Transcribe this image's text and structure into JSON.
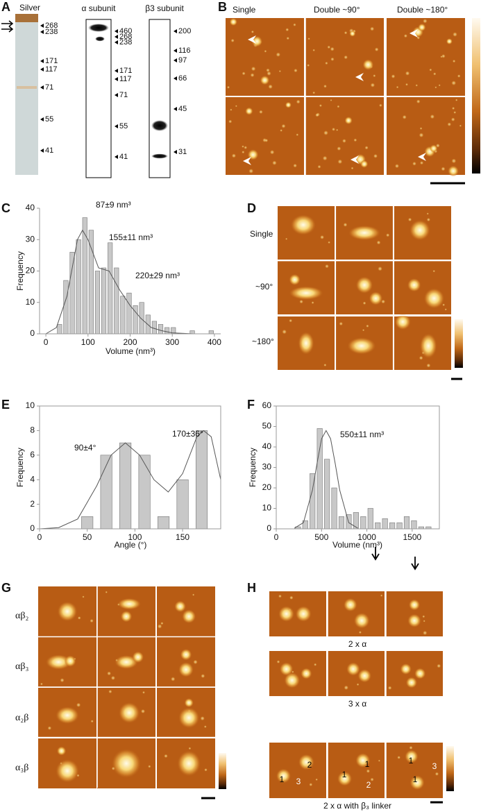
{
  "panel_labels": [
    "A",
    "B",
    "C",
    "D",
    "E",
    "F",
    "G",
    "H"
  ],
  "gel": {
    "silver": {
      "title": "Silver",
      "markers": [
        "268",
        "238",
        "171",
        "117",
        "71",
        "55",
        "41"
      ]
    },
    "alpha": {
      "title": "α subunit",
      "markers": [
        "460",
        "268",
        "238",
        "171",
        "117",
        "71",
        "55",
        "41"
      ]
    },
    "beta3": {
      "title": "β3 subunit",
      "markers": [
        "200",
        "116",
        "97",
        "66",
        "45",
        "31"
      ]
    }
  },
  "afm_b": {
    "columns": [
      "Single",
      "Double ~90°",
      "Double ~180°"
    ]
  },
  "afm_d": {
    "rows": [
      "Single",
      "~90°",
      "~180°"
    ]
  },
  "afm_g": {
    "rows": [
      "αβ₂",
      "αβ₃",
      "α₂β",
      "α₃β"
    ]
  },
  "afm_h": {
    "groups": [
      "2 x α",
      "3 x α",
      "2 x α with β₃ linker"
    ],
    "spot_labels": [
      [
        "1",
        "3",
        "2"
      ],
      [
        "1",
        "1",
        "2"
      ],
      [
        "1",
        "3",
        "1"
      ]
    ]
  },
  "chart_data": [
    {
      "type": "histogram",
      "color": "#c8c8c8",
      "box": false,
      "bins": [
        25,
        40,
        55,
        70,
        85,
        100,
        115,
        130,
        145,
        160,
        175,
        190,
        205,
        220,
        235,
        250,
        265,
        280,
        295,
        310,
        325,
        340,
        355,
        370,
        385,
        400
      ],
      "values": [
        3,
        17,
        26,
        30,
        37,
        33,
        20,
        21,
        29,
        21,
        12,
        13,
        9,
        10,
        6,
        4,
        3,
        2,
        2,
        0,
        0,
        1,
        0,
        0,
        1
      ],
      "fit_curve": {
        "x": [
          0,
          25,
          50,
          75,
          87,
          100,
          125,
          150,
          175,
          200,
          225,
          250,
          275,
          300,
          350,
          400
        ],
        "values": [
          0,
          2,
          12,
          30,
          33,
          30,
          21,
          20,
          14,
          9,
          5,
          2,
          1,
          0.3,
          0,
          0
        ]
      },
      "xlim": [
        -15,
        415
      ],
      "ylim": [
        0,
        40
      ],
      "xticks": [
        0,
        100,
        200,
        300,
        400
      ],
      "yticks": [
        0,
        10,
        20,
        30,
        40
      ],
      "xlabel": "Volume (nm³)",
      "ylabel": "Frequency",
      "annotations": [
        "87±9 nm³",
        "155±11 nm³",
        "220±29 nm³"
      ]
    },
    {
      "type": "bar",
      "color": "#c8c8c8",
      "box": true,
      "x": [
        50,
        70,
        90,
        110,
        130,
        150,
        170
      ],
      "values": [
        1,
        6,
        7,
        6,
        1,
        4,
        8
      ],
      "fit_curve": {
        "x": [
          0,
          20,
          40,
          60,
          75,
          90,
          105,
          120,
          135,
          150,
          165,
          172,
          180,
          190
        ],
        "values": [
          0,
          0.1,
          0.8,
          3.5,
          6,
          7,
          6,
          4,
          3,
          4.5,
          7.5,
          8,
          7.5,
          4
        ]
      },
      "xlim": [
        0,
        190
      ],
      "ylim": [
        0,
        10
      ],
      "xticks": [
        0,
        50,
        100,
        150
      ],
      "yticks": [
        0,
        2,
        4,
        6,
        8,
        10
      ],
      "xlabel": "Angle (°)",
      "ylabel": "Frequency",
      "annotations": [
        "90±4°",
        "170±36°"
      ]
    },
    {
      "type": "histogram",
      "color": "#c8c8c8",
      "box": true,
      "bins": [
        200,
        280,
        360,
        440,
        520,
        600,
        680,
        760,
        840,
        920,
        1000,
        1080,
        1160,
        1240,
        1320,
        1400,
        1480,
        1560,
        1640,
        1720
      ],
      "values": [
        1,
        4,
        27,
        49,
        34,
        20,
        6,
        7,
        8,
        6,
        10,
        3,
        5,
        3,
        3,
        6,
        4,
        1,
        1
      ],
      "fit_curve": {
        "x": [
          200,
          300,
          400,
          450,
          500,
          550,
          600,
          650,
          700,
          800,
          900
        ],
        "values": [
          0.3,
          3,
          19,
          32,
          44,
          48,
          44,
          32,
          19,
          3,
          0.3
        ]
      },
      "xlim": [
        0,
        1800
      ],
      "ylim": [
        0,
        60
      ],
      "xticks": [
        0,
        500,
        1000,
        1500
      ],
      "yticks": [
        0,
        10,
        20,
        30,
        40,
        50,
        60
      ],
      "xlabel": "Volume (nm³)",
      "ylabel": "Frequency",
      "annotations": [
        "550±11 nm³"
      ]
    }
  ]
}
